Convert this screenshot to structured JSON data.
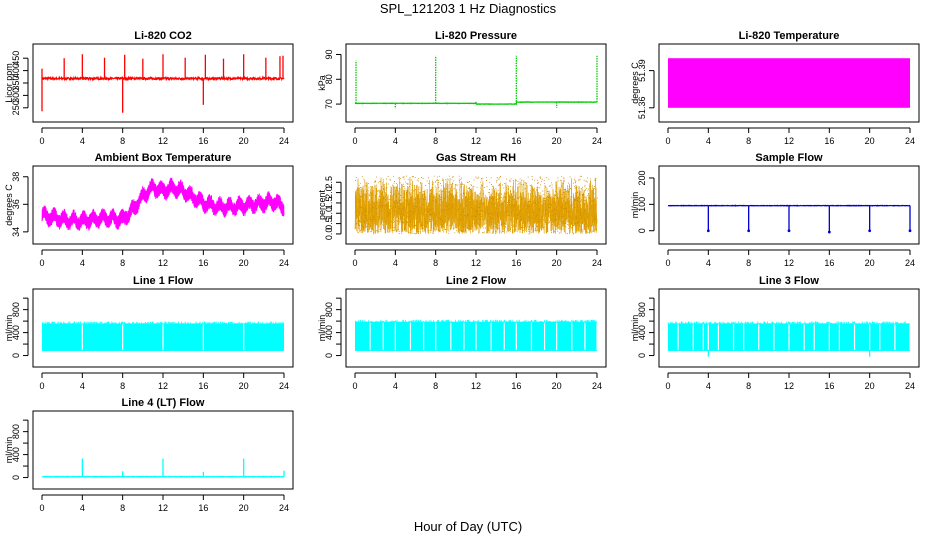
{
  "figure": {
    "title": "SPL_121203  1 Hz Diagnostics",
    "xlabel": "Hour of Day (UTC)"
  },
  "chart_data": [
    {
      "id": "co2",
      "type": "line",
      "title": "Li-820 CO2",
      "ylabel": "Licor ppm",
      "color": "#ff0000",
      "xlim": [
        0,
        24
      ],
      "xticks": [
        0,
        4,
        8,
        12,
        16,
        20,
        24
      ],
      "ylim": [
        225,
        475
      ],
      "yticks": [
        250,
        300,
        350,
        400,
        450
      ],
      "ytick_labels": [
        "250",
        "300",
        "350",
        "400",
        "450"
      ],
      "series": [
        {
          "baseline": 368,
          "noise": 8,
          "spikes": [
            [
              2.2,
              450
            ],
            [
              4.0,
              466
            ],
            [
              6.2,
              452
            ],
            [
              8.0,
              230
            ],
            [
              8.2,
              464
            ],
            [
              10.0,
              448
            ],
            [
              12.0,
              466
            ],
            [
              14.2,
              452
            ],
            [
              16.0,
              262
            ],
            [
              16.2,
              464
            ],
            [
              18.0,
              448
            ],
            [
              20.0,
              466
            ],
            [
              22.2,
              452
            ],
            [
              23.6,
              458
            ],
            [
              23.9,
              460
            ]
          ],
          "initial_dip": [
            0,
            236
          ]
        }
      ]
    },
    {
      "id": "pressure",
      "type": "line",
      "title": "Li-820 Pressure",
      "ylabel": "kPa",
      "color": "#00cc00",
      "xlim": [
        0,
        24
      ],
      "xticks": [
        0,
        4,
        8,
        12,
        16,
        20,
        24
      ],
      "ylim": [
        66,
        91
      ],
      "yticks": [
        70,
        80,
        90
      ],
      "ytick_labels": [
        "70",
        "80",
        "90"
      ],
      "series": [
        {
          "baseline_segments": [
            [
              0,
              12,
              70.3
            ],
            [
              12,
              16,
              70.0
            ],
            [
              16,
              24,
              70.8
            ]
          ],
          "spikes": [
            [
              0.1,
              87.5
            ],
            [
              4.0,
              68.2
            ],
            [
              8.0,
              89.5
            ],
            [
              12.0,
              71.0
            ],
            [
              16.0,
              89.5
            ],
            [
              20.0,
              68.5
            ],
            [
              24.0,
              89.5
            ]
          ]
        }
      ]
    },
    {
      "id": "licor_temp",
      "type": "area",
      "title": "Li-820 Temperature",
      "ylabel": "degrees C",
      "color": "#ff00ff",
      "xlim": [
        0,
        24
      ],
      "xticks": [
        0,
        4,
        8,
        12,
        16,
        20,
        24
      ],
      "ylim": [
        51.355,
        51.405
      ],
      "yticks": [
        51.36,
        51.39
      ],
      "ytick_labels": [
        "51.36",
        "51.39"
      ],
      "series": [
        {
          "band": [
            51.36,
            51.4
          ]
        }
      ]
    },
    {
      "id": "box_temp",
      "type": "line",
      "title": "Ambient Box Temperature",
      "ylabel": "degrees C",
      "color": "#ff00ff",
      "xlim": [
        0,
        24
      ],
      "xticks": [
        0,
        4,
        8,
        12,
        16,
        20,
        24
      ],
      "ylim": [
        33.7,
        38.2
      ],
      "yticks": [
        34,
        36,
        38
      ],
      "ytick_labels": [
        "34",
        "36",
        "38"
      ],
      "series": [
        {
          "center": [
            [
              0,
              35.2
            ],
            [
              2,
              34.9
            ],
            [
              4,
              34.8
            ],
            [
              6,
              35.0
            ],
            [
              8,
              34.9
            ],
            [
              9,
              35.6
            ],
            [
              10,
              36.6
            ],
            [
              11,
              37.2
            ],
            [
              12,
              37.0
            ],
            [
              13,
              37.2
            ],
            [
              14,
              37.0
            ],
            [
              15,
              36.5
            ],
            [
              16,
              36.1
            ],
            [
              17,
              35.9
            ],
            [
              18,
              35.8
            ],
            [
              20,
              35.9
            ],
            [
              21,
              36.0
            ],
            [
              22,
              36.1
            ],
            [
              23,
              36.2
            ],
            [
              24,
              35.8
            ]
          ],
          "amplitude": 0.55
        }
      ]
    },
    {
      "id": "rh",
      "type": "scatter",
      "title": "Gas Stream RH",
      "ylabel": "percent",
      "color": "#e0a000",
      "xlim": [
        0,
        24
      ],
      "xticks": [
        0,
        4,
        8,
        12,
        16,
        20,
        24
      ],
      "ylim": [
        -0.1,
        2.9
      ],
      "yticks": [
        0.0,
        0.5,
        1.0,
        1.5,
        2.0,
        2.5
      ],
      "ytick_labels": [
        "0.0",
        "0.5",
        "1.0",
        "1.5",
        "2.0",
        "2.5"
      ],
      "series": [
        {
          "center": 1.4,
          "range": [
            0.0,
            2.8
          ]
        }
      ]
    },
    {
      "id": "sample_flow",
      "type": "line",
      "title": "Sample Flow",
      "ylabel": "ml/min",
      "color": "#0000cc",
      "xlim": [
        0,
        24
      ],
      "xticks": [
        0,
        4,
        8,
        12,
        16,
        20,
        24
      ],
      "ylim": [
        -20,
        215
      ],
      "yticks": [
        0,
        100,
        200
      ],
      "ytick_labels": [
        "0",
        "100",
        "200"
      ],
      "series": [
        {
          "baseline": 95,
          "spikes": [
            [
              4.0,
              0
            ],
            [
              8.0,
              0
            ],
            [
              12.0,
              0
            ],
            [
              16.0,
              -5
            ],
            [
              20.0,
              0
            ],
            [
              24.0,
              0
            ]
          ]
        }
      ]
    },
    {
      "id": "line1",
      "type": "area",
      "title": "Line 1 Flow",
      "ylabel": "ml/min",
      "color": "#00ffff",
      "xlim": [
        0,
        24
      ],
      "xticks": [
        0,
        4,
        8,
        12,
        16,
        20,
        24
      ],
      "ylim": [
        -60,
        1020
      ],
      "yticks": [
        0,
        200,
        400,
        600,
        800,
        1000
      ],
      "ytick_labels": [
        "0",
        "400",
        "800"
      ],
      "series": [
        {
          "band": [
            80,
            560
          ],
          "gaps": [
            4.0,
            8.0,
            12.0,
            16.0,
            20.0
          ]
        }
      ]
    },
    {
      "id": "line2",
      "type": "area",
      "title": "Line 2 Flow",
      "ylabel": "ml/min",
      "color": "#00ffff",
      "xlim": [
        0,
        24
      ],
      "xticks": [
        0,
        4,
        8,
        12,
        16,
        20,
        24
      ],
      "ylim": [
        -60,
        1020
      ],
      "yticks": [
        0,
        200,
        400,
        600,
        800,
        1000
      ],
      "ytick_labels": [
        "0",
        "400",
        "800"
      ],
      "series": [
        {
          "band": [
            80,
            590
          ],
          "gaps": [
            1.5,
            2.8,
            4.0,
            5.5,
            6.8,
            8.0,
            9.5,
            10.8,
            12.0,
            13.5,
            14.8,
            16.0,
            17.5,
            18.8,
            20.0,
            21.5,
            22.8,
            24.0
          ]
        }
      ]
    },
    {
      "id": "line3",
      "type": "area",
      "title": "Line 3 Flow",
      "ylabel": "ml/min",
      "color": "#00ffff",
      "xlim": [
        0,
        24
      ],
      "xticks": [
        0,
        4,
        8,
        12,
        16,
        20,
        24
      ],
      "ylim": [
        -60,
        1020
      ],
      "yticks": [
        0,
        200,
        400,
        600,
        800,
        1000
      ],
      "ytick_labels": [
        "0",
        "400",
        "800"
      ],
      "series": [
        {
          "band": [
            80,
            560
          ],
          "gaps": [
            1.0,
            2.5,
            3.5,
            4.0,
            5.0,
            6.5,
            7.5,
            9.0,
            10.5,
            12.0,
            13.5,
            14.5,
            16.0,
            17.0,
            18.5,
            20.0,
            21.0,
            22.5,
            24.0
          ],
          "dips": [
            [
              4.0,
              -20
            ],
            [
              20.0,
              -20
            ]
          ]
        }
      ]
    },
    {
      "id": "line4",
      "type": "line",
      "title": "Line 4 (LT) Flow",
      "ylabel": "ml/min",
      "color": "#00ffff",
      "xlim": [
        0,
        24
      ],
      "xticks": [
        0,
        4,
        8,
        12,
        16,
        20,
        24
      ],
      "ylim": [
        -60,
        1020
      ],
      "yticks": [
        0,
        200,
        400,
        600,
        800,
        1000
      ],
      "ytick_labels": [
        "0",
        "400",
        "800"
      ],
      "series": [
        {
          "baseline": 15,
          "spikes": [
            [
              4.0,
              330
            ],
            [
              8.0,
              110
            ],
            [
              12.0,
              330
            ],
            [
              16.0,
              100
            ],
            [
              20.0,
              330
            ],
            [
              24.0,
              120
            ]
          ]
        }
      ]
    }
  ]
}
